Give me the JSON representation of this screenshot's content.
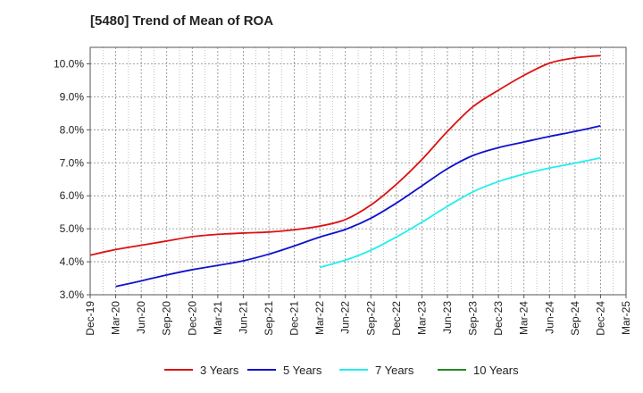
{
  "chart_data": {
    "type": "line",
    "title": "[5480]  Trend of Mean of ROA",
    "xlabel": "",
    "ylabel": "",
    "x_categories": [
      "Dec-19",
      "Mar-20",
      "Jun-20",
      "Sep-20",
      "Dec-20",
      "Mar-21",
      "Jun-21",
      "Sep-21",
      "Dec-21",
      "Mar-22",
      "Jun-22",
      "Sep-22",
      "Dec-22",
      "Mar-23",
      "Jun-23",
      "Sep-23",
      "Dec-23",
      "Mar-24",
      "Jun-24",
      "Sep-24",
      "Dec-24",
      "Mar-25"
    ],
    "y_ticks": [
      3.0,
      4.0,
      5.0,
      6.0,
      7.0,
      8.0,
      9.0,
      10.0
    ],
    "y_tick_format": "percent_1dp",
    "ylim": [
      3.0,
      10.5
    ],
    "grid": true,
    "legend_position": "bottom",
    "series": [
      {
        "name": "3 Years",
        "color": "#dd1111",
        "values": [
          4.2,
          4.37,
          4.5,
          4.63,
          4.76,
          4.83,
          4.87,
          4.9,
          4.97,
          5.08,
          5.28,
          5.72,
          6.35,
          7.1,
          7.95,
          8.7,
          9.2,
          9.65,
          10.02,
          10.18,
          10.25,
          null
        ]
      },
      {
        "name": "5 Years",
        "color": "#1111cc",
        "values": [
          null,
          3.25,
          3.42,
          3.6,
          3.76,
          3.89,
          4.03,
          4.23,
          4.48,
          4.75,
          4.98,
          5.32,
          5.78,
          6.3,
          6.82,
          7.22,
          7.46,
          7.63,
          7.8,
          7.95,
          8.12,
          null
        ]
      },
      {
        "name": "7 Years",
        "color": "#22eeee",
        "values": [
          null,
          null,
          null,
          null,
          null,
          null,
          null,
          null,
          null,
          3.83,
          4.05,
          4.35,
          4.75,
          5.2,
          5.68,
          6.12,
          6.43,
          6.66,
          6.84,
          6.99,
          7.15,
          null
        ]
      },
      {
        "name": "10 Years",
        "color": "#228822",
        "values": [
          null,
          null,
          null,
          null,
          null,
          null,
          null,
          null,
          null,
          null,
          null,
          null,
          null,
          null,
          null,
          null,
          null,
          null,
          null,
          null,
          null,
          null
        ]
      }
    ]
  }
}
